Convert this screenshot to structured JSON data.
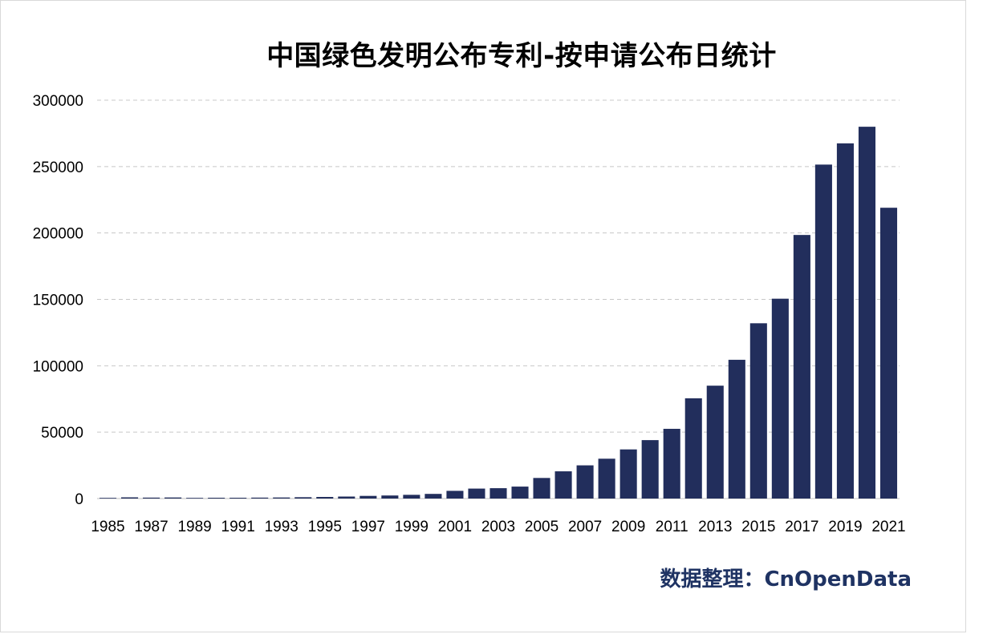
{
  "chart_data": {
    "type": "bar",
    "title": "中国绿色发明公布专利-按申请公布日统计",
    "xlabel": "",
    "ylabel": "",
    "ylim": [
      0,
      300000
    ],
    "yticks": [
      0,
      50000,
      100000,
      150000,
      200000,
      250000,
      300000
    ],
    "grid": true,
    "legend": "none",
    "bar_color": "#222e5c",
    "categories": [
      "1985",
      "1986",
      "1987",
      "1988",
      "1989",
      "1990",
      "1991",
      "1992",
      "1993",
      "1994",
      "1995",
      "1996",
      "1997",
      "1998",
      "1999",
      "2000",
      "2001",
      "2002",
      "2003",
      "2004",
      "2005",
      "2006",
      "2007",
      "2008",
      "2009",
      "2010",
      "2011",
      "2012",
      "2013",
      "2014",
      "2015",
      "2016",
      "2017",
      "2018",
      "2019",
      "2020",
      "2021"
    ],
    "x_tick_labels": [
      "1985",
      "1987",
      "1989",
      "1991",
      "1993",
      "1995",
      "1997",
      "1999",
      "2001",
      "2003",
      "2005",
      "2007",
      "2009",
      "2011",
      "2013",
      "2015",
      "2017",
      "2019",
      "2021"
    ],
    "values": [
      500,
      900,
      700,
      800,
      500,
      600,
      600,
      700,
      800,
      1000,
      1200,
      1500,
      2000,
      2300,
      2800,
      3500,
      5800,
      7500,
      7800,
      9000,
      15500,
      20500,
      25000,
      30000,
      37000,
      44000,
      52500,
      75500,
      85000,
      104500,
      132000,
      150500,
      198500,
      251500,
      267500,
      280000,
      219000
    ]
  },
  "source_note": "数据整理：CnOpenData"
}
